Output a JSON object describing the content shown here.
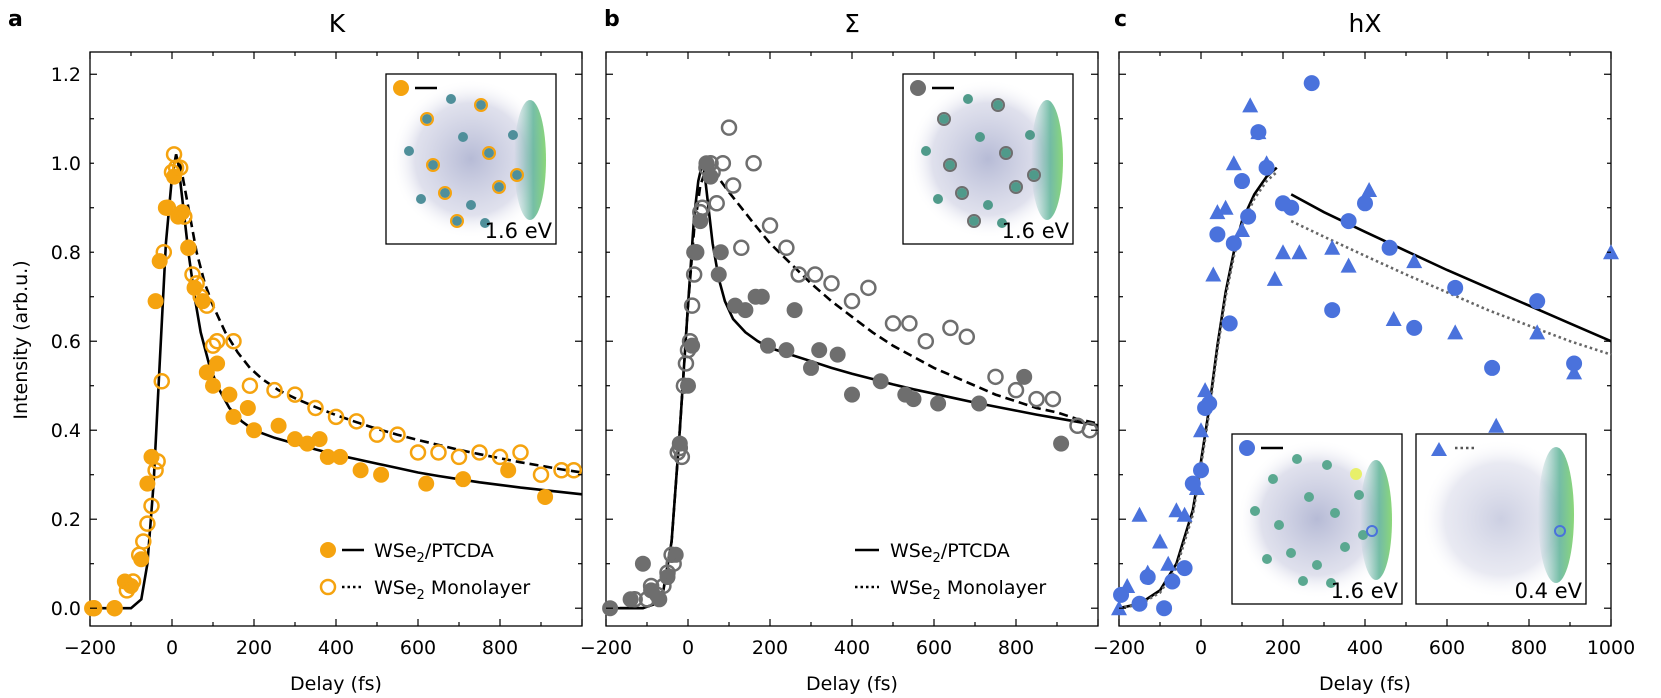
{
  "chart_data": [
    {
      "type": "scatter",
      "panel_letter": "a",
      "title": "K",
      "xlabel": "Delay (fs)",
      "ylabel": "Intensity (arb.u.)",
      "xlim": [
        -200,
        1000
      ],
      "ylim": [
        -0.04,
        1.25
      ],
      "xticks": [
        -200,
        0,
        200,
        400,
        600,
        800
      ],
      "xtick_labels": [
        "−200",
        "0",
        "200",
        "400",
        "600",
        "800"
      ],
      "yticks": [
        0.0,
        0.2,
        0.4,
        0.6,
        0.8,
        1.0,
        1.2
      ],
      "ytick_labels": [
        "0.0",
        "0.2",
        "0.4",
        "0.6",
        "0.8",
        "1.0",
        "1.2"
      ],
      "marker_color": "#f5a30f",
      "legend": {
        "position": "lower-right",
        "entries": [
          {
            "label_main": "WSe",
            "label_sub": "2",
            "label_rest": "/PTCDA",
            "marker": "filled-circle",
            "line": "solid"
          },
          {
            "label_main": "WSe",
            "label_sub": "2",
            "label_rest": " Monolayer",
            "marker": "open-circle",
            "line": "dotted"
          }
        ]
      },
      "inset": {
        "energy_label": "1.6 eV",
        "marker": "filled-circle",
        "line": "solid"
      },
      "series": [
        {
          "name": "WSe2/PTCDA",
          "style": "filled",
          "x": [
            -195,
            -140,
            -115,
            -100,
            -75,
            -60,
            -50,
            -40,
            -30,
            -15,
            5,
            15,
            25,
            40,
            55,
            75,
            85,
            100,
            110,
            140,
            150,
            185,
            200,
            260,
            300,
            330,
            360,
            380,
            410,
            460,
            510,
            620,
            710,
            820,
            910
          ],
          "y": [
            0.0,
            0.0,
            0.06,
            0.05,
            0.11,
            0.28,
            0.34,
            0.69,
            0.78,
            0.9,
            0.97,
            0.88,
            0.89,
            0.81,
            0.72,
            0.69,
            0.53,
            0.5,
            0.55,
            0.48,
            0.43,
            0.45,
            0.4,
            0.41,
            0.38,
            0.37,
            0.38,
            0.34,
            0.34,
            0.31,
            0.3,
            0.28,
            0.29,
            0.31,
            0.25
          ]
        },
        {
          "name": "WSe2 Monolayer",
          "style": "open",
          "x": [
            -190,
            -140,
            -110,
            -95,
            -80,
            -70,
            -60,
            -50,
            -40,
            -35,
            -25,
            -20,
            -10,
            0,
            5,
            10,
            20,
            30,
            40,
            50,
            60,
            70,
            85,
            100,
            110,
            150,
            190,
            250,
            300,
            350,
            400,
            450,
            500,
            550,
            600,
            650,
            700,
            750,
            800,
            850,
            900,
            950,
            980
          ],
          "y": [
            0.0,
            0.0,
            0.04,
            0.06,
            0.12,
            0.15,
            0.19,
            0.23,
            0.31,
            0.33,
            0.51,
            0.8,
            0.9,
            0.98,
            1.02,
            0.99,
            0.99,
            0.88,
            0.81,
            0.75,
            0.73,
            0.7,
            0.68,
            0.59,
            0.6,
            0.6,
            0.5,
            0.49,
            0.48,
            0.45,
            0.43,
            0.42,
            0.39,
            0.39,
            0.35,
            0.35,
            0.34,
            0.35,
            0.34,
            0.35,
            0.3,
            0.31,
            0.31
          ]
        }
      ],
      "fits": [
        {
          "name": "WSe2/PTCDA fit",
          "style": "solid",
          "x": [
            -200,
            -100,
            -75,
            -60,
            -45,
            -30,
            -15,
            0,
            10,
            15,
            25,
            40,
            55,
            70,
            90,
            110,
            140,
            170,
            200,
            250,
            300,
            350,
            400,
            450,
            500,
            550,
            600,
            650,
            700,
            750,
            800,
            850,
            900,
            950,
            1000
          ],
          "y": [
            0.0,
            0.0,
            0.02,
            0.1,
            0.28,
            0.55,
            0.82,
            0.97,
            1.02,
            1.0,
            0.92,
            0.8,
            0.7,
            0.62,
            0.55,
            0.5,
            0.45,
            0.42,
            0.4,
            0.383,
            0.37,
            0.357,
            0.345,
            0.335,
            0.325,
            0.315,
            0.305,
            0.297,
            0.29,
            0.283,
            0.277,
            0.271,
            0.266,
            0.261,
            0.256
          ]
        },
        {
          "name": "WSe2 Monolayer fit",
          "style": "dashed",
          "x": [
            20,
            40,
            60,
            80,
            100,
            130,
            160,
            190,
            220,
            260,
            300,
            350,
            400,
            450,
            500,
            550,
            600,
            650,
            700,
            750,
            800,
            850,
            900,
            950,
            1000
          ],
          "y": [
            1.0,
            0.9,
            0.8,
            0.73,
            0.68,
            0.62,
            0.575,
            0.54,
            0.515,
            0.49,
            0.472,
            0.452,
            0.434,
            0.418,
            0.403,
            0.39,
            0.378,
            0.367,
            0.356,
            0.346,
            0.337,
            0.328,
            0.32,
            0.312,
            0.305
          ]
        }
      ]
    },
    {
      "type": "scatter",
      "panel_letter": "b",
      "title": "Σ",
      "xlabel": "Delay (fs)",
      "ylabel": "",
      "xlim": [
        -200,
        1000
      ],
      "ylim": [
        -0.04,
        1.25
      ],
      "xticks": [
        -200,
        0,
        200,
        400,
        600,
        800
      ],
      "xtick_labels": [
        "−200",
        "0",
        "200",
        "400",
        "600",
        "800"
      ],
      "marker_color": "#6e6e6e",
      "legend": {
        "position": "lower-right",
        "entries": [
          {
            "label_main": "WSe",
            "label_sub": "2",
            "label_rest": "/PTCDA",
            "marker": "none",
            "line": "solid"
          },
          {
            "label_main": "WSe",
            "label_sub": "2",
            "label_rest": " Monolayer",
            "marker": "none",
            "line": "dotted"
          }
        ]
      },
      "inset": {
        "energy_label": "1.6 eV",
        "marker": "filled-circle",
        "line": "solid"
      },
      "series": [
        {
          "name": "WSe2/PTCDA",
          "style": "filled",
          "x": [
            -190,
            -140,
            -110,
            -90,
            -70,
            -50,
            -30,
            -20,
            0,
            10,
            15,
            30,
            45,
            55,
            75,
            80,
            115,
            140,
            165,
            180,
            195,
            240,
            260,
            300,
            320,
            365,
            400,
            470,
            530,
            550,
            610,
            710,
            820,
            910
          ],
          "y": [
            0.0,
            0.02,
            0.1,
            0.04,
            0.02,
            0.07,
            0.12,
            0.37,
            0.5,
            0.59,
            0.8,
            0.87,
            1.0,
            0.97,
            0.75,
            0.8,
            0.68,
            0.67,
            0.7,
            0.7,
            0.59,
            0.58,
            0.67,
            0.54,
            0.58,
            0.57,
            0.48,
            0.51,
            0.48,
            0.47,
            0.46,
            0.46,
            0.52,
            0.37
          ]
        },
        {
          "name": "WSe2 Monolayer",
          "style": "open",
          "x": [
            -130,
            -100,
            -90,
            -75,
            -60,
            -50,
            -40,
            -35,
            -25,
            -20,
            -15,
            -10,
            -5,
            0,
            5,
            10,
            15,
            20,
            30,
            35,
            45,
            55,
            60,
            70,
            85,
            100,
            110,
            130,
            160,
            200,
            240,
            270,
            310,
            350,
            400,
            440,
            500,
            540,
            580,
            640,
            680,
            750,
            800,
            850,
            890,
            950,
            980
          ],
          "y": [
            0.02,
            0.02,
            0.05,
            0.03,
            0.05,
            0.08,
            0.12,
            0.1,
            0.35,
            0.36,
            0.34,
            0.5,
            0.55,
            0.58,
            0.6,
            0.68,
            0.75,
            0.8,
            0.89,
            0.9,
            0.99,
            1.0,
            0.98,
            0.91,
            1.0,
            1.08,
            0.95,
            0.81,
            1.0,
            0.86,
            0.81,
            0.75,
            0.75,
            0.73,
            0.69,
            0.72,
            0.64,
            0.64,
            0.6,
            0.63,
            0.61,
            0.52,
            0.49,
            0.47,
            0.47,
            0.41,
            0.4
          ]
        }
      ],
      "fits": [
        {
          "name": "WSe2/PTCDA fit",
          "style": "solid",
          "x": [
            -200,
            -110,
            -80,
            -60,
            -40,
            -20,
            0,
            15,
            25,
            35,
            40,
            50,
            60,
            75,
            90,
            110,
            140,
            170,
            200,
            250,
            300,
            350,
            400,
            450,
            500,
            550,
            600,
            650,
            700,
            750,
            800,
            850,
            900,
            950,
            1000
          ],
          "y": [
            0.0,
            0.0,
            0.01,
            0.04,
            0.15,
            0.4,
            0.68,
            0.88,
            0.96,
            1.0,
            0.98,
            0.9,
            0.82,
            0.74,
            0.69,
            0.65,
            0.62,
            0.6,
            0.585,
            0.57,
            0.555,
            0.54,
            0.527,
            0.515,
            0.503,
            0.492,
            0.482,
            0.472,
            0.462,
            0.453,
            0.444,
            0.435,
            0.427,
            0.419,
            0.411
          ]
        },
        {
          "name": "WSe2 Monolayer fit",
          "style": "dashed",
          "x": [
            -200,
            -110,
            -80,
            -60,
            -40,
            -20,
            0,
            15,
            30,
            45,
            55,
            65,
            80,
            100,
            130,
            160,
            200,
            250,
            300,
            350,
            400,
            450,
            500,
            550,
            600,
            650,
            700,
            750,
            800,
            850,
            900,
            950,
            1000
          ],
          "y": [
            0.0,
            0.0,
            0.01,
            0.04,
            0.15,
            0.4,
            0.68,
            0.85,
            0.95,
            0.99,
            1.0,
            0.98,
            0.96,
            0.935,
            0.9,
            0.865,
            0.82,
            0.775,
            0.73,
            0.69,
            0.655,
            0.62,
            0.59,
            0.565,
            0.54,
            0.52,
            0.5,
            0.48,
            0.465,
            0.45,
            0.44,
            0.425,
            0.415
          ]
        }
      ]
    },
    {
      "type": "scatter",
      "panel_letter": "c",
      "title": "hX",
      "xlabel": "Delay (fs)",
      "ylabel": "",
      "xlim": [
        -200,
        1000
      ],
      "ylim": [
        -0.04,
        1.25
      ],
      "xticks": [
        -200,
        0,
        200,
        400,
        600,
        800,
        1000
      ],
      "xtick_labels": [
        "−200",
        "0",
        "200",
        "400",
        "600",
        "800",
        "1000"
      ],
      "marker_color": "#4a72dc",
      "insets": [
        {
          "energy_label": "1.6 eV",
          "marker": "filled-circle",
          "line": "solid"
        },
        {
          "energy_label": "0.4 eV",
          "marker": "triangle",
          "line": "dotted"
        }
      ],
      "series": [
        {
          "name": "WSe2/PTCDA",
          "style": "filled-circle",
          "x": [
            -195,
            -150,
            -130,
            -90,
            -70,
            -40,
            -20,
            0,
            10,
            20,
            40,
            70,
            80,
            100,
            115,
            140,
            160,
            200,
            220,
            270,
            320,
            360,
            400,
            460,
            520,
            620,
            710,
            820,
            910
          ],
          "y": [
            0.03,
            0.01,
            0.07,
            0.0,
            0.06,
            0.09,
            0.28,
            0.31,
            0.45,
            0.46,
            0.84,
            0.64,
            0.82,
            0.96,
            0.88,
            1.07,
            0.99,
            0.91,
            0.9,
            1.18,
            0.67,
            0.87,
            0.91,
            0.81,
            0.63,
            0.72,
            0.54,
            0.69,
            0.55
          ]
        },
        {
          "name": "WSe2 Monolayer",
          "style": "triangle",
          "x": [
            -200,
            -180,
            -150,
            -130,
            -100,
            -80,
            -60,
            -40,
            -10,
            0,
            10,
            30,
            40,
            60,
            80,
            100,
            120,
            140,
            160,
            180,
            200,
            240,
            320,
            360,
            410,
            470,
            520,
            620,
            720,
            820,
            910,
            1000
          ],
          "y": [
            0.0,
            0.05,
            0.21,
            0.08,
            0.15,
            0.1,
            0.22,
            0.21,
            0.27,
            0.4,
            0.49,
            0.75,
            0.89,
            0.9,
            1.0,
            0.85,
            1.13,
            1.07,
            1.0,
            0.74,
            0.8,
            0.8,
            0.81,
            0.77,
            0.94,
            0.65,
            0.78,
            0.62,
            0.41,
            0.62,
            0.53,
            0.8
          ]
        }
      ],
      "fits": [
        {
          "name": "WSe2/PTCDA fit",
          "style": "solid",
          "x": [
            220,
            300,
            400,
            500,
            600,
            700,
            800,
            900,
            1000
          ],
          "y": [
            0.93,
            0.89,
            0.846,
            0.803,
            0.76,
            0.72,
            0.68,
            0.64,
            0.6
          ]
        },
        {
          "name": "WSe2 Monolayer fit",
          "style": "dotted",
          "x": [
            220,
            300,
            400,
            500,
            600,
            700,
            800,
            900,
            1000
          ],
          "y": [
            0.87,
            0.835,
            0.792,
            0.75,
            0.71,
            0.67,
            0.635,
            0.6,
            0.57
          ]
        },
        {
          "name": "rise fit solid",
          "style": "solid",
          "x": [
            -200,
            -150,
            -100,
            -60,
            -20,
            0,
            20,
            40,
            60,
            80,
            100,
            130,
            160,
            185
          ],
          "y": [
            0.0,
            0.01,
            0.04,
            0.1,
            0.22,
            0.33,
            0.45,
            0.59,
            0.71,
            0.8,
            0.87,
            0.93,
            0.97,
            0.99
          ]
        },
        {
          "name": "rise fit dotted",
          "style": "dotted",
          "x": [
            -200,
            -150,
            -100,
            -60,
            -20,
            0,
            20,
            40,
            60,
            80,
            100,
            130,
            160,
            185
          ],
          "y": [
            0.0,
            0.008,
            0.035,
            0.09,
            0.21,
            0.32,
            0.44,
            0.58,
            0.7,
            0.79,
            0.86,
            0.92,
            0.96,
            0.98
          ]
        }
      ]
    }
  ]
}
